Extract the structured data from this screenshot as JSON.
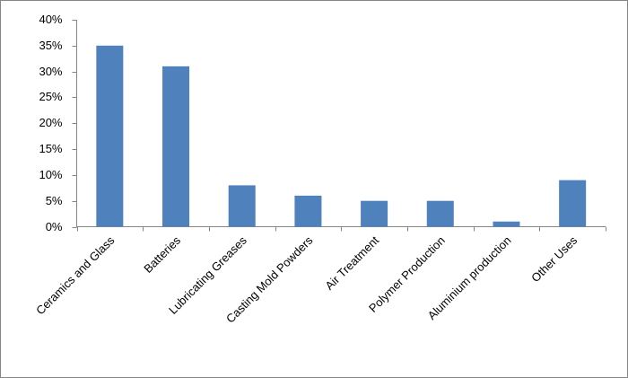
{
  "chart_data": {
    "type": "bar",
    "categories": [
      "Ceramics and Glass",
      "Batteries",
      "Lubricating Greases",
      "Casting Mold Powders",
      "Air Treatment",
      "Polymer Production",
      "Aluminium production",
      "Other Uses"
    ],
    "values": [
      35,
      31,
      8,
      6,
      5,
      5,
      1,
      9
    ],
    "color": "#4f81bd",
    "ylim": [
      0,
      40
    ],
    "yticks": [
      {
        "value": 0,
        "label": "0%"
      },
      {
        "value": 5,
        "label": "5%"
      },
      {
        "value": 10,
        "label": "10%"
      },
      {
        "value": 15,
        "label": "15%"
      },
      {
        "value": 20,
        "label": "20%"
      },
      {
        "value": 25,
        "label": "25%"
      },
      {
        "value": 30,
        "label": "30%"
      },
      {
        "value": 35,
        "label": "35%"
      },
      {
        "value": 40,
        "label": "40%"
      }
    ],
    "grid": false
  }
}
